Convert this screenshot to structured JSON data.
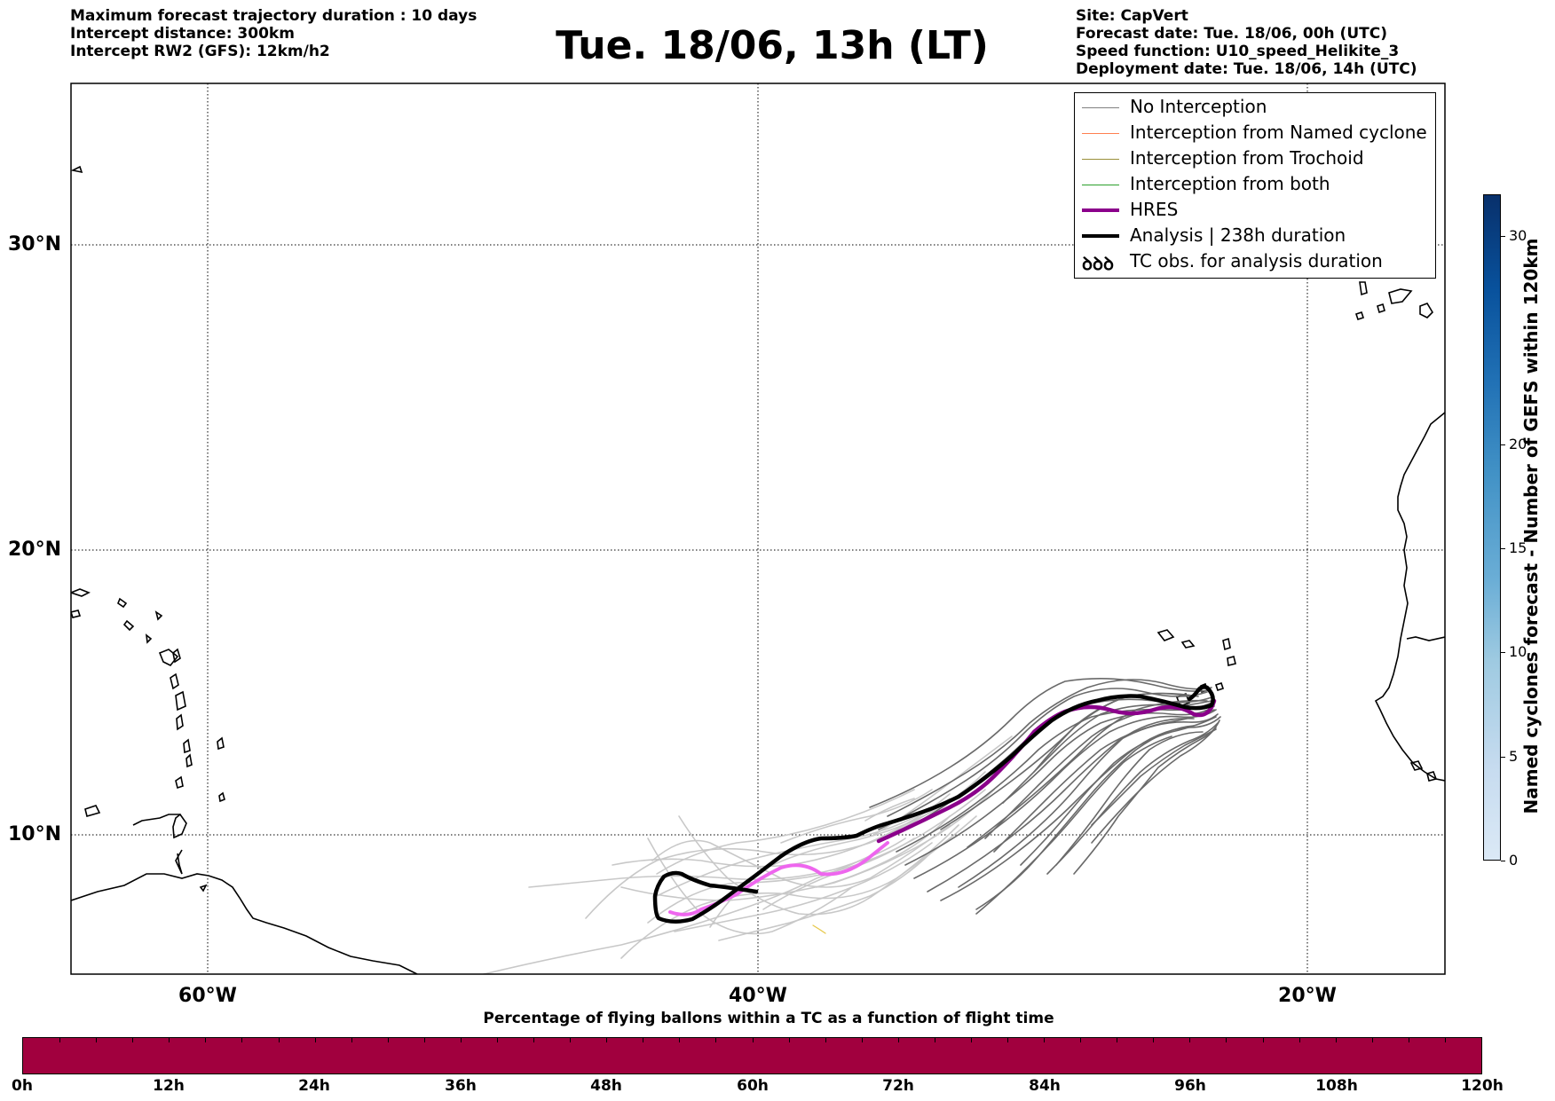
{
  "header": {
    "left_lines": [
      "Maximum forecast trajectory duration : 10 days",
      "Intercept distance: 300km",
      "Intercept RW2 (GFS):  12km/h2"
    ],
    "title": "Tue. 18/06, 13h (LT)",
    "right_lines": [
      "Site: CapVert",
      "Forecast date: Tue. 18/06, 00h (UTC)",
      "Speed function: U10_speed_Helikite_3",
      "Deployment date: Tue. 18/06, 14h (UTC)"
    ]
  },
  "map": {
    "lat_labels": [
      "30°N",
      "20°N",
      "10°N"
    ],
    "lon_labels": [
      "60°W",
      "40°W",
      "20°W"
    ],
    "lon_range": [
      -65,
      -15
    ],
    "lat_range": [
      5,
      35
    ],
    "grid": "dotted"
  },
  "legend": {
    "items": [
      {
        "label": "No Interception",
        "color": "#808080",
        "width": 1.5
      },
      {
        "label": "Interception from Named cyclone",
        "color": "#ff7f50",
        "width": 1.5
      },
      {
        "label": "Interception from Trochoid",
        "color": "#9a8f3a",
        "width": 1.5
      },
      {
        "label": "Interception from both",
        "color": "#2ca02c",
        "width": 1.5
      },
      {
        "label": "HRES",
        "color": "#8b008b",
        "width": 4
      },
      {
        "label": "Analysis | 238h duration",
        "color": "#000000",
        "width": 4
      },
      {
        "label": "TC obs. for analysis duration",
        "color": "#000000",
        "icon": "tc-symbols-icon",
        "symbol": "ꝺꝺꝺ"
      }
    ]
  },
  "colorbar_right": {
    "label": "Named cyclones forecast - Number of GEFS within 120km",
    "ticks": [
      "0",
      "5",
      "10",
      "15",
      "20",
      "30"
    ],
    "tick_values": [
      0,
      5,
      10,
      15,
      20,
      30
    ],
    "max": 32
  },
  "colorbar_bottom": {
    "title": "Percentage of flying ballons within a TC as a function of flight time",
    "ticks": [
      "0h",
      "12h",
      "24h",
      "36h",
      "48h",
      "60h",
      "72h",
      "84h",
      "96h",
      "108h",
      "120h"
    ],
    "color": "#a1003e"
  }
}
